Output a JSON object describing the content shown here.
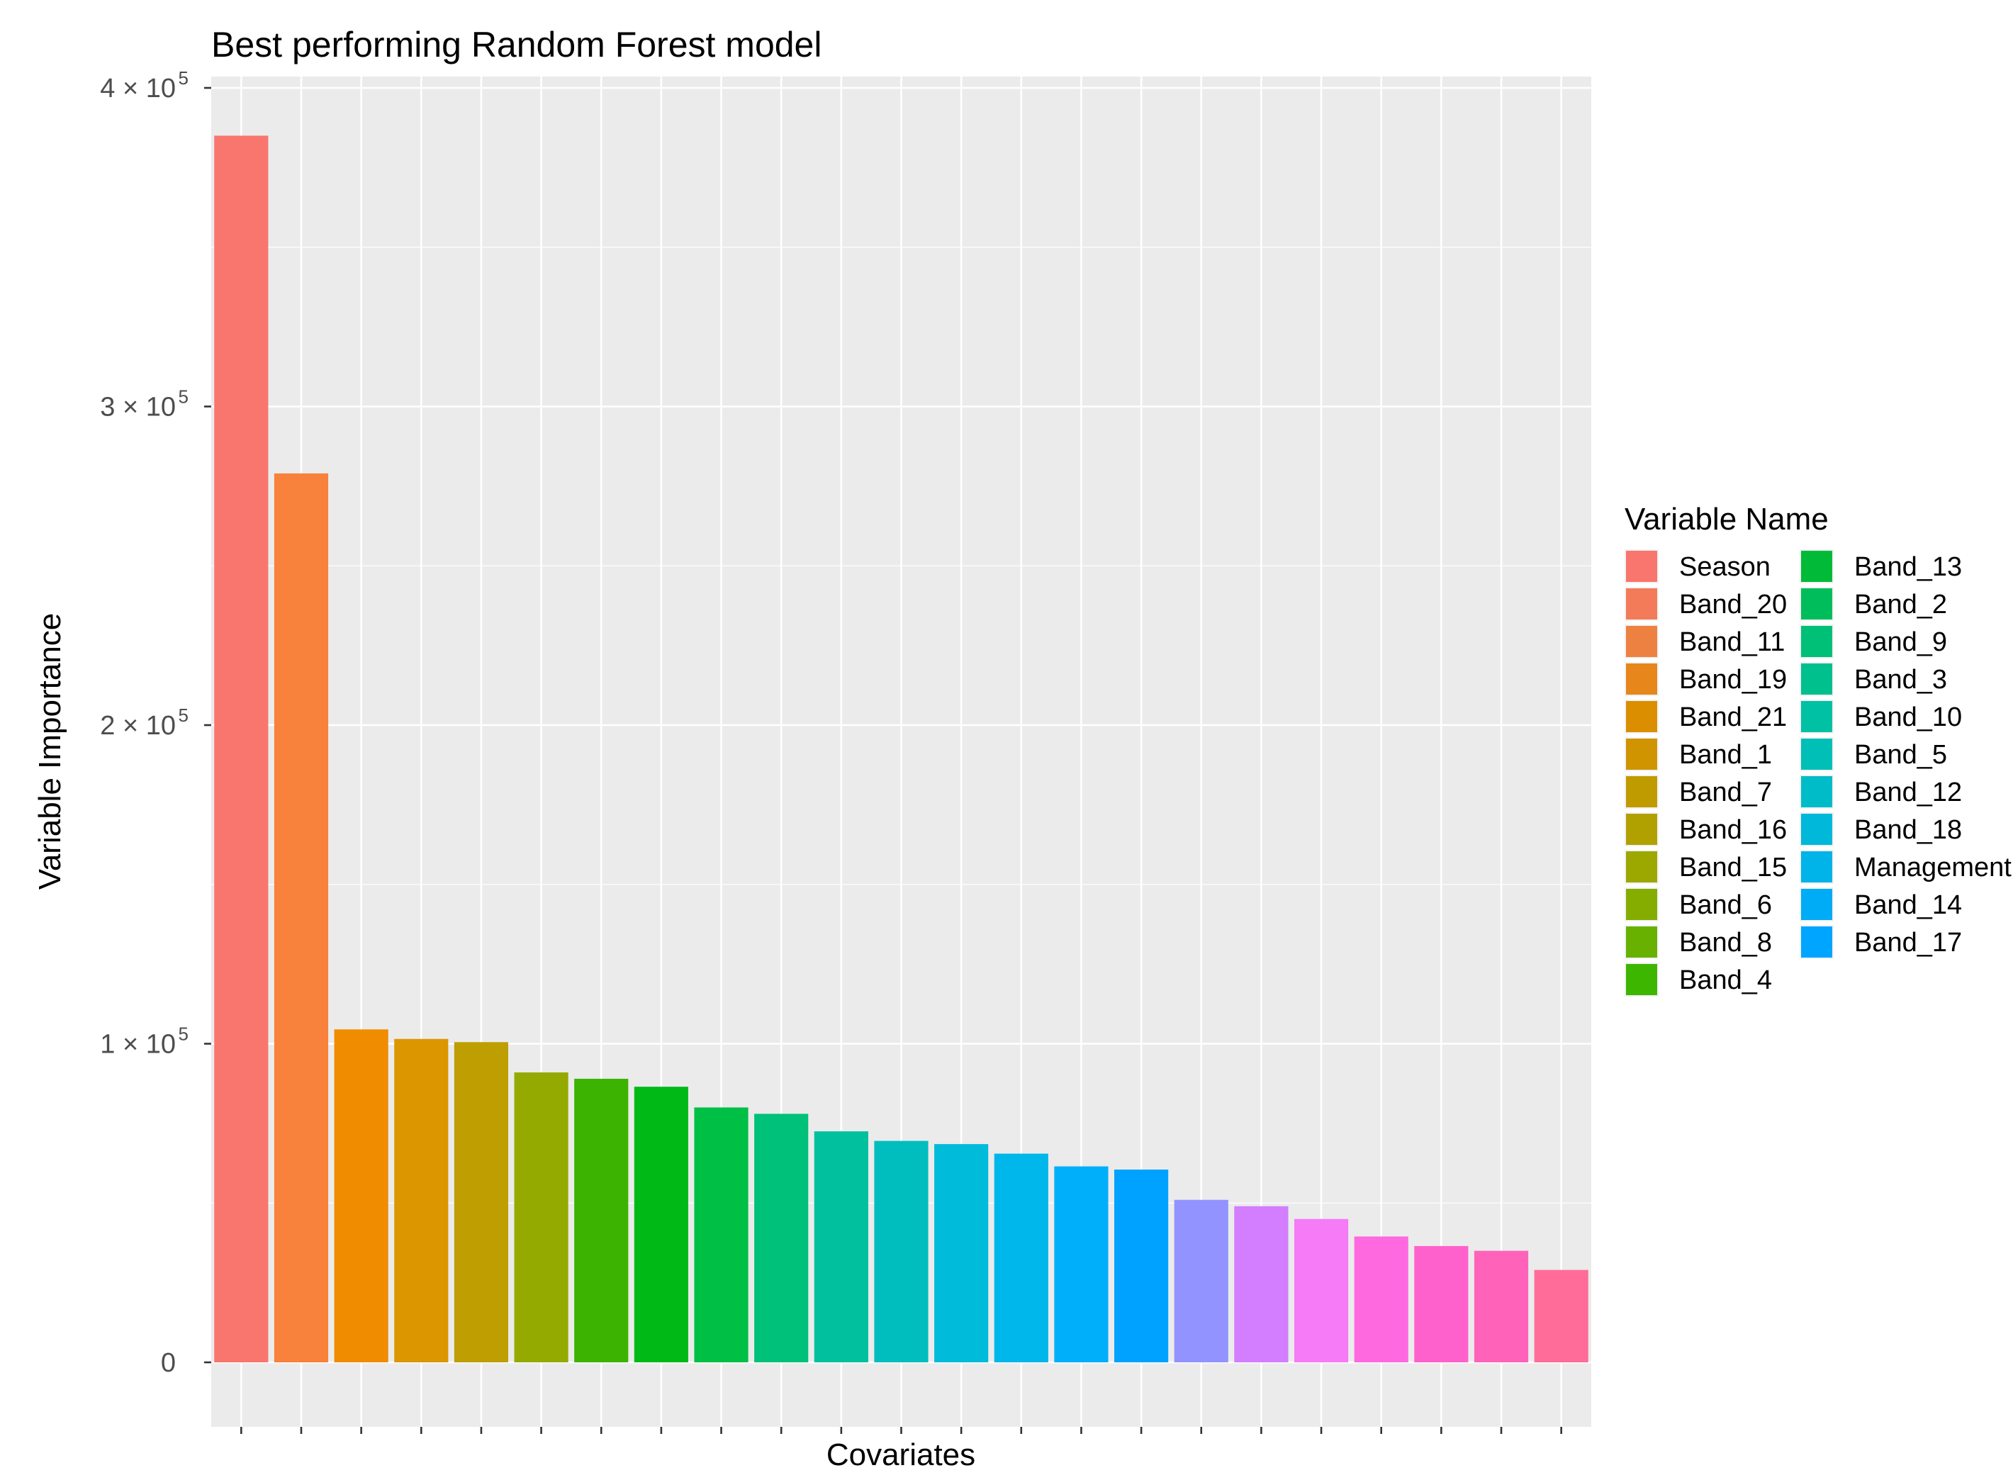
{
  "chart_data": {
    "type": "bar",
    "title": "Best performing Random Forest model",
    "xlabel": "Covariates",
    "ylabel": "Variable Importance",
    "ylim": [
      -20000,
      405000
    ],
    "y_ticks": [
      {
        "value": 0,
        "mantissa": "0",
        "exponent": ""
      },
      {
        "value": 100000,
        "mantissa": "1 × 10",
        "exponent": "5"
      },
      {
        "value": 200000,
        "mantissa": "2 × 10",
        "exponent": "5"
      },
      {
        "value": 300000,
        "mantissa": "3 × 10",
        "exponent": "5"
      },
      {
        "value": 400000,
        "mantissa": "4 × 10",
        "exponent": "5"
      }
    ],
    "x_tick_labels_shown": false,
    "grid": true,
    "legend": {
      "title": "Variable Name",
      "position": "right",
      "columns": 2
    },
    "categories": [
      "Season",
      "Band_20",
      "Band_11",
      "Band_19",
      "Band_21",
      "Band_1",
      "Band_7",
      "Band_16",
      "Band_15",
      "Band_6",
      "Band_8",
      "Band_4",
      "Band_13",
      "Band_2",
      "Band_9",
      "Band_3",
      "Band_10",
      "Band_5",
      "Band_12",
      "Band_18",
      "Management",
      "Band_14",
      "Band_17"
    ],
    "values": [
      385000,
      279000,
      104500,
      101500,
      100500,
      91000,
      89000,
      86500,
      80000,
      78000,
      72500,
      69500,
      68500,
      65500,
      61500,
      60500,
      51000,
      49000,
      45000,
      39500,
      36500,
      35000,
      29000
    ],
    "colors": [
      "#F8766D",
      "#F37B59",
      "#ED8141",
      "#E7861B",
      "#DB8E00",
      "#CF9400",
      "#C09B00",
      "#B0A100",
      "#9CA700",
      "#85AD00",
      "#68B100",
      "#3DB600",
      "#00BA38",
      "#00BD5C",
      "#00C078",
      "#00C08E",
      "#00C1A3",
      "#00BFB7",
      "#00BCC9",
      "#00B8DA",
      "#00B3E9",
      "#00ACF6",
      "#00A5FF"
    ],
    "bar_colors_in_plot": [
      "#F8766D",
      "#F8813B",
      "#F08C00",
      "#DC9600",
      "#BE9E00",
      "#95AA00",
      "#3CB300",
      "#00B917",
      "#00BF45",
      "#00C179",
      "#00C09D",
      "#00BEBE",
      "#00BBD9",
      "#00B7EC",
      "#00AFF9",
      "#00A2FF",
      "#9293FF",
      "#D27EFF",
      "#F57BF7",
      "#FE69E0",
      "#FF61CC",
      "#FF63B9",
      "#FF6C99"
    ]
  }
}
